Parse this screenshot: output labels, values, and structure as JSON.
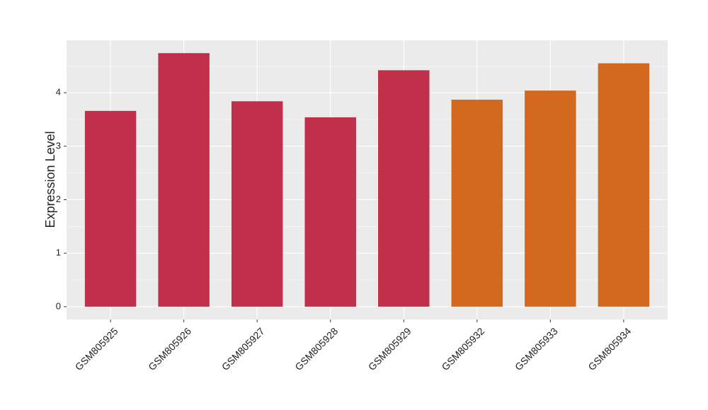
{
  "chart_data": {
    "type": "bar",
    "y_label": "Expression Level",
    "categories": [
      "GSM805925",
      "GSM805926",
      "GSM805927",
      "GSM805928",
      "GSM805929",
      "GSM805932",
      "GSM805933",
      "GSM805934"
    ],
    "values": [
      3.66,
      4.74,
      3.84,
      3.54,
      4.42,
      3.87,
      4.04,
      4.55
    ],
    "colors": [
      "#c1304a",
      "#c1304a",
      "#c1304a",
      "#c1304a",
      "#c1304a",
      "#d2691e",
      "#d2691e",
      "#d2691e"
    ],
    "ylim": [
      -0.24,
      4.98
    ],
    "yticks": [
      0,
      1,
      2,
      3,
      4
    ],
    "grid": true
  }
}
